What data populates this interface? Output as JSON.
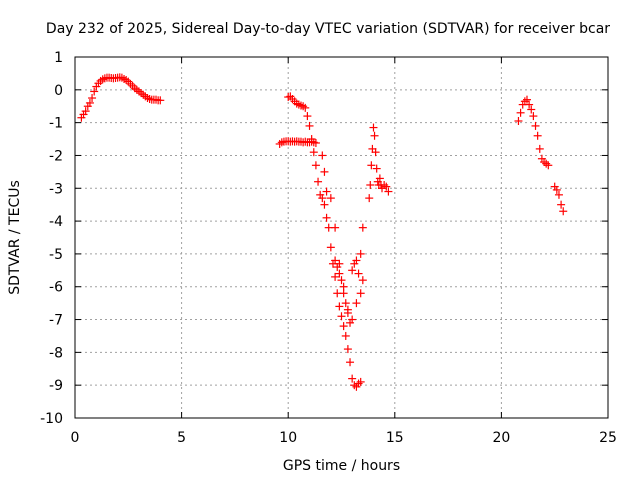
{
  "chart_data": {
    "type": "scatter",
    "title": "Day 232 of 2025, Sidereal Day-to-day VTEC variation (SDTVAR) for receiver bcar",
    "xlabel": "GPS time / hours",
    "ylabel": "SDTVAR / TECUs",
    "xlim": [
      0,
      25
    ],
    "ylim": [
      -10,
      1
    ],
    "xticks": [
      0,
      5,
      10,
      15,
      20,
      25
    ],
    "xtick_labels": [
      "0",
      "5",
      "10",
      "15",
      "20",
      "25"
    ],
    "yticks": [
      1,
      0,
      -1,
      -2,
      -3,
      -4,
      -5,
      -6,
      -7,
      -8,
      -9,
      -10
    ],
    "ytick_labels": [
      "1",
      "0",
      "-1",
      "-2",
      "-3",
      "-4",
      "-5",
      "-6",
      "-7",
      "-8",
      "-9",
      "-10"
    ],
    "grid": true,
    "marker": "+",
    "color": "#ff0000",
    "series": [
      {
        "name": "SDTVAR",
        "x": [
          0.3,
          0.4,
          0.5,
          0.6,
          0.7,
          0.8,
          0.9,
          1.0,
          1.1,
          1.2,
          1.3,
          1.4,
          1.5,
          1.6,
          1.7,
          1.8,
          1.9,
          2.0,
          2.1,
          2.2,
          2.3,
          2.4,
          2.5,
          2.6,
          2.7,
          2.8,
          2.9,
          3.0,
          3.1,
          3.2,
          3.3,
          3.4,
          3.5,
          3.6,
          3.7,
          3.8,
          3.9,
          4.0,
          9.6,
          9.7,
          9.8,
          9.9,
          10.0,
          10.1,
          10.2,
          10.3,
          10.4,
          10.5,
          10.6,
          10.7,
          10.8,
          10.9,
          11.0,
          11.1,
          11.2,
          11.3,
          10.0,
          10.1,
          10.2,
          10.3,
          10.4,
          10.5,
          10.6,
          10.7,
          10.8,
          10.9,
          11.0,
          11.1,
          11.2,
          11.3,
          11.4,
          11.5,
          11.6,
          11.7,
          11.8,
          11.9,
          12.0,
          12.1,
          12.2,
          12.3,
          12.4,
          12.5,
          12.6,
          12.7,
          12.8,
          12.9,
          13.0,
          13.1,
          13.2,
          13.3,
          13.4,
          11.6,
          11.7,
          11.8,
          12.0,
          12.2,
          12.4,
          12.6,
          12.8,
          13.0,
          13.2,
          13.4,
          13.5,
          12.2,
          12.3,
          12.4,
          12.5,
          12.6,
          12.7,
          12.8,
          12.9,
          13.0,
          13.1,
          13.2,
          13.3,
          13.4,
          13.5,
          13.8,
          13.85,
          13.9,
          13.95,
          14.0,
          14.05,
          14.1,
          14.15,
          14.2,
          14.25,
          14.3,
          14.35,
          14.4,
          14.5,
          14.6,
          14.7,
          20.8,
          20.9,
          21.0,
          21.1,
          21.2,
          21.3,
          21.4,
          21.5,
          21.6,
          21.7,
          21.8,
          21.9,
          22.0,
          22.1,
          22.2,
          22.5,
          22.6,
          22.7,
          22.8,
          22.9
        ],
        "y": [
          -0.85,
          -0.75,
          -0.65,
          -0.5,
          -0.4,
          -0.25,
          -0.05,
          0.1,
          0.2,
          0.27,
          0.32,
          0.35,
          0.37,
          0.37,
          0.36,
          0.35,
          0.36,
          0.37,
          0.38,
          0.37,
          0.33,
          0.3,
          0.25,
          0.18,
          0.12,
          0.05,
          0.0,
          -0.05,
          -0.1,
          -0.15,
          -0.2,
          -0.25,
          -0.28,
          -0.3,
          -0.3,
          -0.3,
          -0.32,
          -0.32,
          -1.65,
          -1.6,
          -1.58,
          -1.57,
          -1.57,
          -1.58,
          -1.57,
          -1.58,
          -1.57,
          -1.58,
          -1.58,
          -1.6,
          -1.58,
          -1.6,
          -1.6,
          -1.58,
          -1.6,
          -1.62,
          -0.22,
          -0.2,
          -0.28,
          -0.35,
          -0.42,
          -0.45,
          -0.48,
          -0.5,
          -0.55,
          -0.8,
          -1.1,
          -1.5,
          -1.9,
          -2.3,
          -2.8,
          -3.2,
          -3.3,
          -3.5,
          -3.9,
          -4.2,
          -4.8,
          -5.3,
          -5.7,
          -6.2,
          -6.6,
          -6.9,
          -7.2,
          -7.5,
          -7.9,
          -8.3,
          -8.8,
          -9.0,
          -9.05,
          -8.95,
          -8.9,
          -2.0,
          -2.5,
          -3.1,
          -3.3,
          -4.2,
          -5.3,
          -6.0,
          -6.7,
          -7.0,
          -6.5,
          -6.2,
          -5.8,
          -5.2,
          -5.4,
          -5.6,
          -5.8,
          -6.2,
          -6.5,
          -6.8,
          -7.1,
          -5.5,
          -5.3,
          -5.2,
          -5.6,
          -5.0,
          -4.2,
          -3.3,
          -2.9,
          -2.3,
          -1.8,
          -1.15,
          -1.4,
          -1.9,
          -2.4,
          -2.8,
          -2.9,
          -2.7,
          -2.9,
          -3.0,
          -2.9,
          -2.95,
          -3.1,
          -0.95,
          -0.7,
          -0.45,
          -0.35,
          -0.3,
          -0.45,
          -0.6,
          -0.8,
          -1.1,
          -1.4,
          -1.8,
          -2.1,
          -2.2,
          -2.25,
          -2.3,
          -2.95,
          -3.05,
          -3.2,
          -3.5,
          -3.7
        ]
      }
    ]
  }
}
